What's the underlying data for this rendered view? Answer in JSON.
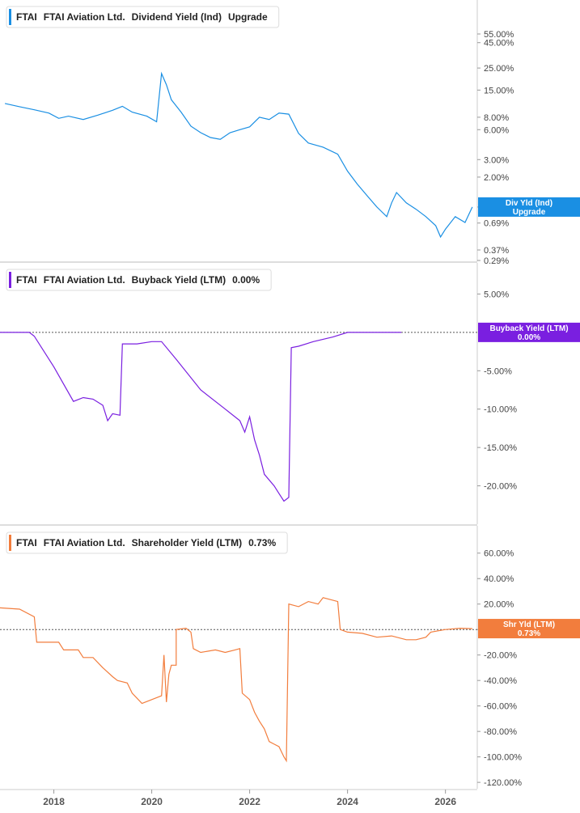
{
  "chart_data": {
    "type": "line",
    "x_axis": {
      "ticks": [
        "2018",
        "2020",
        "2022",
        "2024",
        "2026"
      ]
    },
    "panels": [
      {
        "id": "dividend",
        "legend": {
          "ticker": "FTAI",
          "company": "FTAI Aviation Ltd.",
          "metric": "Dividend Yield (Ind)",
          "value": "Upgrade"
        },
        "color": "#1a8fe3",
        "scale": "log",
        "ylim": [
          0.29,
          80
        ],
        "y_ticks": [
          {
            "v": 55,
            "label": "55.00%"
          },
          {
            "v": 45,
            "label": "45.00%"
          },
          {
            "v": 25,
            "label": "25.00%"
          },
          {
            "v": 15,
            "label": "15.00%"
          },
          {
            "v": 8,
            "label": "8.00%"
          },
          {
            "v": 6,
            "label": "6.00%"
          },
          {
            "v": 3,
            "label": "3.00%"
          },
          {
            "v": 2,
            "label": "2.00%"
          },
          {
            "v": 1,
            "label": "1.00%"
          },
          {
            "v": 0.69,
            "label": "0.69%"
          },
          {
            "v": 0.37,
            "label": "0.37%"
          },
          {
            "v": 0.29,
            "label": "0.29%"
          }
        ],
        "badge": {
          "line1": "Div Yld (Ind)",
          "line2": "Upgrade",
          "value": 1.0
        },
        "zero_line": false,
        "series": [
          [
            2017.0,
            11.0
          ],
          [
            2017.3,
            10.2
          ],
          [
            2017.6,
            9.5
          ],
          [
            2017.9,
            8.8
          ],
          [
            2018.1,
            7.8
          ],
          [
            2018.3,
            8.2
          ],
          [
            2018.6,
            7.6
          ],
          [
            2018.9,
            8.4
          ],
          [
            2019.2,
            9.4
          ],
          [
            2019.4,
            10.3
          ],
          [
            2019.6,
            9.0
          ],
          [
            2019.9,
            8.2
          ],
          [
            2020.1,
            7.2
          ],
          [
            2020.2,
            22.0
          ],
          [
            2020.3,
            17.0
          ],
          [
            2020.4,
            12.0
          ],
          [
            2020.6,
            9.0
          ],
          [
            2020.8,
            6.5
          ],
          [
            2021.0,
            5.6
          ],
          [
            2021.2,
            5.0
          ],
          [
            2021.4,
            4.8
          ],
          [
            2021.6,
            5.6
          ],
          [
            2021.8,
            6.0
          ],
          [
            2022.0,
            6.4
          ],
          [
            2022.2,
            8.0
          ],
          [
            2022.4,
            7.6
          ],
          [
            2022.6,
            8.8
          ],
          [
            2022.8,
            8.6
          ],
          [
            2023.0,
            5.5
          ],
          [
            2023.2,
            4.4
          ],
          [
            2023.5,
            4.0
          ],
          [
            2023.8,
            3.4
          ],
          [
            2024.0,
            2.3
          ],
          [
            2024.2,
            1.7
          ],
          [
            2024.4,
            1.3
          ],
          [
            2024.6,
            1.0
          ],
          [
            2024.8,
            0.8
          ],
          [
            2024.9,
            1.1
          ],
          [
            2025.0,
            1.4
          ],
          [
            2025.2,
            1.1
          ],
          [
            2025.4,
            0.95
          ],
          [
            2025.6,
            0.8
          ],
          [
            2025.8,
            0.65
          ],
          [
            2025.9,
            0.5
          ],
          [
            2026.0,
            0.6
          ],
          [
            2026.2,
            0.8
          ],
          [
            2026.4,
            0.7
          ],
          [
            2026.55,
            1.0
          ]
        ]
      },
      {
        "id": "buyback",
        "legend": {
          "ticker": "FTAI",
          "company": "FTAI Aviation Ltd.",
          "metric": "Buyback Yield (LTM)",
          "value": "0.00%"
        },
        "color": "#7a1fe0",
        "scale": "linear",
        "ylim": [
          -25,
          8
        ],
        "y_ticks": [
          {
            "v": 5,
            "label": "5.00%"
          },
          {
            "v": -5,
            "label": "-5.00%"
          },
          {
            "v": -10,
            "label": "-10.00%"
          },
          {
            "v": -15,
            "label": "-15.00%"
          },
          {
            "v": -20,
            "label": "-20.00%"
          }
        ],
        "badge": {
          "line1": "Buyback Yield (LTM)",
          "line2": "0.00%",
          "value": 0
        },
        "zero_line": true,
        "series": [
          [
            2016.9,
            0
          ],
          [
            2017.5,
            0
          ],
          [
            2017.6,
            -0.5
          ],
          [
            2018.0,
            -4.5
          ],
          [
            2018.4,
            -9.0
          ],
          [
            2018.6,
            -8.5
          ],
          [
            2018.8,
            -8.7
          ],
          [
            2019.0,
            -9.5
          ],
          [
            2019.1,
            -11.5
          ],
          [
            2019.2,
            -10.6
          ],
          [
            2019.35,
            -10.8
          ],
          [
            2019.4,
            -1.5
          ],
          [
            2019.7,
            -1.5
          ],
          [
            2020.0,
            -1.2
          ],
          [
            2020.2,
            -1.2
          ],
          [
            2020.5,
            -3.5
          ],
          [
            2021.0,
            -7.5
          ],
          [
            2021.5,
            -10.0
          ],
          [
            2021.8,
            -11.5
          ],
          [
            2021.9,
            -13.0
          ],
          [
            2022.0,
            -11.0
          ],
          [
            2022.1,
            -14.0
          ],
          [
            2022.2,
            -16.0
          ],
          [
            2022.3,
            -18.5
          ],
          [
            2022.5,
            -20.0
          ],
          [
            2022.6,
            -21.0
          ],
          [
            2022.7,
            -22.0
          ],
          [
            2022.8,
            -21.5
          ],
          [
            2022.85,
            -2.0
          ],
          [
            2023.0,
            -1.8
          ],
          [
            2023.3,
            -1.2
          ],
          [
            2023.7,
            -0.6
          ],
          [
            2024.0,
            0
          ],
          [
            2024.5,
            0
          ],
          [
            2025.1,
            0
          ]
        ]
      },
      {
        "id": "shareholder",
        "legend": {
          "ticker": "FTAI",
          "company": "FTAI Aviation Ltd.",
          "metric": "Shareholder Yield (LTM)",
          "value": "0.73%"
        },
        "color": "#f27d3d",
        "scale": "linear",
        "ylim": [
          -125,
          70
        ],
        "y_ticks": [
          {
            "v": 60,
            "label": "60.00%"
          },
          {
            "v": 40,
            "label": "40.00%"
          },
          {
            "v": 20,
            "label": "20.00%"
          },
          {
            "v": 0,
            "label": "0.00%"
          },
          {
            "v": -20,
            "label": "-20.00%"
          },
          {
            "v": -40,
            "label": "-40.00%"
          },
          {
            "v": -60,
            "label": "-60.00%"
          },
          {
            "v": -80,
            "label": "-80.00%"
          },
          {
            "v": -100,
            "label": "-100.00%"
          },
          {
            "v": -120,
            "label": "-120.00%"
          }
        ],
        "badge": {
          "line1": "Shr Yld (LTM)",
          "line2": "0.73%",
          "value": 0.73
        },
        "zero_line": true,
        "series": [
          [
            2016.9,
            17
          ],
          [
            2017.3,
            16
          ],
          [
            2017.6,
            10
          ],
          [
            2017.65,
            -10
          ],
          [
            2017.9,
            -10
          ],
          [
            2018.1,
            -10
          ],
          [
            2018.2,
            -16
          ],
          [
            2018.5,
            -16
          ],
          [
            2018.6,
            -22
          ],
          [
            2018.8,
            -22
          ],
          [
            2019.0,
            -30
          ],
          [
            2019.2,
            -37
          ],
          [
            2019.3,
            -40
          ],
          [
            2019.5,
            -42
          ],
          [
            2019.6,
            -50
          ],
          [
            2019.8,
            -58
          ],
          [
            2020.0,
            -55
          ],
          [
            2020.2,
            -52
          ],
          [
            2020.25,
            -20
          ],
          [
            2020.3,
            -57
          ],
          [
            2020.35,
            -35
          ],
          [
            2020.4,
            -28
          ],
          [
            2020.5,
            -28
          ],
          [
            2020.5,
            0
          ],
          [
            2020.7,
            1
          ],
          [
            2020.8,
            -2
          ],
          [
            2020.85,
            -15
          ],
          [
            2021.0,
            -18
          ],
          [
            2021.3,
            -16
          ],
          [
            2021.5,
            -18
          ],
          [
            2021.7,
            -16
          ],
          [
            2021.8,
            -15
          ],
          [
            2021.85,
            -50
          ],
          [
            2022.0,
            -55
          ],
          [
            2022.1,
            -65
          ],
          [
            2022.2,
            -72
          ],
          [
            2022.3,
            -78
          ],
          [
            2022.4,
            -88
          ],
          [
            2022.5,
            -90
          ],
          [
            2022.6,
            -92
          ],
          [
            2022.7,
            -100
          ],
          [
            2022.75,
            -103
          ],
          [
            2022.8,
            20
          ],
          [
            2023.0,
            18
          ],
          [
            2023.2,
            22
          ],
          [
            2023.4,
            20
          ],
          [
            2023.5,
            25
          ],
          [
            2023.8,
            22
          ],
          [
            2023.85,
            0
          ],
          [
            2024.0,
            -2
          ],
          [
            2024.3,
            -3
          ],
          [
            2024.6,
            -6
          ],
          [
            2024.9,
            -5
          ],
          [
            2025.2,
            -8
          ],
          [
            2025.4,
            -8
          ],
          [
            2025.6,
            -6
          ],
          [
            2025.7,
            -2
          ],
          [
            2026.0,
            0
          ],
          [
            2026.3,
            1
          ],
          [
            2026.55,
            0.73
          ]
        ]
      }
    ]
  }
}
